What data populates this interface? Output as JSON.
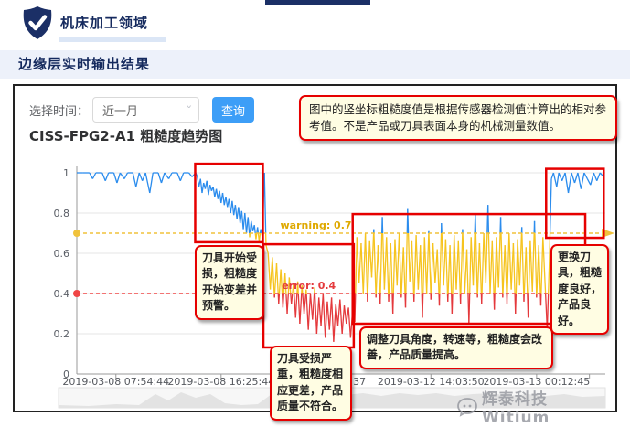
{
  "header": {
    "title": "机床加工领域"
  },
  "subheader": {
    "title": "边缘层实时输出结果"
  },
  "controls": {
    "time_label": "选择时间：",
    "time_value": "近一月",
    "query_button": "查询"
  },
  "note": "图中的竖坐标粗糙度值是根据传感器检测值计算出的相对参考值。不是产品或刀具表面本身的机械测量数值。",
  "callouts": [
    {
      "id": "tool-damage-start",
      "text": "刀具开始受损，粗糙度开始变差并预警。"
    },
    {
      "id": "tool-damage-severe",
      "text": "刀具受损严重，粗糙度相应更差，产品质量不符合。"
    },
    {
      "id": "tool-adjusted",
      "text": "调整刀具角度，转速等，粗糙度会改善，产品质量提高。"
    },
    {
      "id": "tool-replaced",
      "text": "更换刀具，粗糙度良好，产品良好。"
    }
  ],
  "watermark": {
    "text": "辉泰科技 Witium",
    "icon": "chat-bubble-icon"
  },
  "chart_data": {
    "type": "line",
    "title": "CISS-FPG2-A1 粗糙度趋势图",
    "ylabel": "",
    "xlabel": "",
    "ylim": [
      0,
      1
    ],
    "yticks": [
      0,
      0.2,
      0.4,
      0.6,
      0.8,
      1
    ],
    "grid": true,
    "x_labels": [
      {
        "pos": 7.4,
        "text": "2019-03-08 07:54:44"
      },
      {
        "pos": 27.3,
        "text": "2019-03-08 16:25:44"
      },
      {
        "pos": 54.7,
        "text": ":37",
        "anchor": "end"
      },
      {
        "pos": 67,
        "text": "2019-03-12 14:03:50"
      },
      {
        "pos": 87,
        "text": "2019-03-13 00:12:45"
      }
    ],
    "xticks": [
      7.4,
      27.3,
      47,
      67,
      87,
      97
    ],
    "thresholds": [
      {
        "name": "warning",
        "value": 0.7,
        "label": "warning: 0.7",
        "color": "#f0c23c",
        "label_color": "#dfa900",
        "label_x": 52,
        "arrow": true,
        "dot": true
      },
      {
        "name": "error",
        "value": 0.4,
        "label": "error: 0.4",
        "color": "#ef4545",
        "label_color": "#e4393c",
        "label_x": 49,
        "arrow": false,
        "dot": true
      }
    ],
    "series_colors": {
      "above_warning": "#2b8ced",
      "between": "#f6c41f",
      "below_error": "#e4393c"
    },
    "highlight_box_color": "#e60000",
    "highlight_regions": [
      {
        "x1": 22.4,
        "x2": 35.2,
        "v1": 0.655,
        "v2": 1.045
      },
      {
        "x1": 35.3,
        "x2": 52.4,
        "v1": 0.132,
        "v2": 0.645
      },
      {
        "x1": 52.2,
        "x2": 96.2,
        "v1": 0.25,
        "v2": 0.795
      },
      {
        "x1": 88.8,
        "x2": 99.7,
        "v1": 0.677,
        "v2": 1.02
      }
    ],
    "points": [
      [
        0,
        1
      ],
      [
        1.2,
        1
      ],
      [
        2.4,
        1
      ],
      [
        3,
        0.97
      ],
      [
        3.6,
        1
      ],
      [
        4.8,
        1
      ],
      [
        5.4,
        0.96
      ],
      [
        6,
        1
      ],
      [
        7,
        1
      ],
      [
        7.6,
        0.95
      ],
      [
        8.2,
        1
      ],
      [
        9,
        0.97
      ],
      [
        9.6,
        1
      ],
      [
        10.6,
        1
      ],
      [
        11.2,
        0.93
      ],
      [
        11.8,
        1
      ],
      [
        12.4,
        0.96
      ],
      [
        13,
        1
      ],
      [
        13.8,
        0.9
      ],
      [
        14.4,
        1
      ],
      [
        15.4,
        1
      ],
      [
        16,
        0.95
      ],
      [
        16.6,
        1
      ],
      [
        17.4,
        0.97
      ],
      [
        18,
        1
      ],
      [
        19,
        1
      ],
      [
        19.6,
        0.96
      ],
      [
        20.2,
        1
      ],
      [
        21.2,
        1
      ],
      [
        21.8,
        0.98
      ],
      [
        22.5,
        1
      ],
      [
        22.8,
        0.98
      ],
      [
        23.1,
        0.93
      ],
      [
        23.4,
        0.97
      ],
      [
        23.7,
        0.9
      ],
      [
        24,
        0.95
      ],
      [
        24.3,
        0.92
      ],
      [
        24.6,
        0.96
      ],
      [
        24.9,
        0.89
      ],
      [
        25.2,
        0.94
      ],
      [
        25.5,
        0.91
      ],
      [
        25.8,
        0.93
      ],
      [
        26.1,
        0.88
      ],
      [
        26.4,
        0.92
      ],
      [
        26.7,
        0.87
      ],
      [
        27,
        0.91
      ],
      [
        27.3,
        0.85
      ],
      [
        27.6,
        0.9
      ],
      [
        27.9,
        0.84
      ],
      [
        28.2,
        0.88
      ],
      [
        28.5,
        0.83
      ],
      [
        28.8,
        0.87
      ],
      [
        29.1,
        0.8
      ],
      [
        29.4,
        0.86
      ],
      [
        29.7,
        0.79
      ],
      [
        30,
        0.84
      ],
      [
        30.3,
        0.77
      ],
      [
        30.6,
        0.83
      ],
      [
        30.9,
        0.75
      ],
      [
        31.2,
        0.81
      ],
      [
        31.5,
        0.72
      ],
      [
        31.8,
        0.8
      ],
      [
        32.1,
        0.7
      ],
      [
        32.4,
        0.78
      ],
      [
        32.7,
        0.68
      ],
      [
        33,
        0.76
      ],
      [
        33.3,
        0.71
      ],
      [
        33.6,
        0.74
      ],
      [
        33.9,
        0.67
      ],
      [
        34.2,
        0.73
      ],
      [
        34.5,
        0.66
      ],
      [
        34.8,
        0.72
      ],
      [
        35.1,
        0.68
      ],
      [
        35.5,
        1
      ],
      [
        35.8,
        0.64
      ],
      [
        36.2,
        0.6
      ],
      [
        36.6,
        0.42
      ],
      [
        37,
        0.58
      ],
      [
        37.4,
        0.38
      ],
      [
        37.8,
        0.55
      ],
      [
        38.2,
        0.35
      ],
      [
        38.6,
        0.52
      ],
      [
        39,
        0.33
      ],
      [
        39.4,
        0.5
      ],
      [
        39.8,
        0.3
      ],
      [
        40.2,
        0.48
      ],
      [
        40.6,
        0.35
      ],
      [
        41,
        0.45
      ],
      [
        41.4,
        0.28
      ],
      [
        41.8,
        0.46
      ],
      [
        42.2,
        0.25
      ],
      [
        42.6,
        0.44
      ],
      [
        43,
        0.3
      ],
      [
        43.4,
        0.42
      ],
      [
        43.8,
        0.22
      ],
      [
        44.2,
        0.4
      ],
      [
        44.6,
        0.27
      ],
      [
        45,
        0.43
      ],
      [
        45.4,
        0.2
      ],
      [
        45.8,
        0.38
      ],
      [
        46.2,
        0.24
      ],
      [
        46.6,
        0.4
      ],
      [
        47,
        0.18
      ],
      [
        47.4,
        0.36
      ],
      [
        47.8,
        0.22
      ],
      [
        48.2,
        0.38
      ],
      [
        48.6,
        0.16
      ],
      [
        49,
        0.35
      ],
      [
        49.4,
        0.24
      ],
      [
        49.8,
        0.37
      ],
      [
        50.2,
        0.2
      ],
      [
        50.6,
        0.34
      ],
      [
        51,
        0.25
      ],
      [
        51.4,
        0.33
      ],
      [
        51.8,
        0.18
      ],
      [
        52.2,
        0.32
      ],
      [
        52.6,
        0.26
      ],
      [
        53,
        0.68
      ],
      [
        53.4,
        0.45
      ],
      [
        53.8,
        0.65
      ],
      [
        54.2,
        0.4
      ],
      [
        54.6,
        0.7
      ],
      [
        55,
        0.36
      ],
      [
        55.4,
        0.66
      ],
      [
        55.8,
        0.48
      ],
      [
        56.2,
        0.72
      ],
      [
        56.6,
        0.38
      ],
      [
        57,
        0.64
      ],
      [
        57.4,
        0.35
      ],
      [
        57.8,
        0.78
      ],
      [
        58.2,
        0.42
      ],
      [
        58.6,
        0.68
      ],
      [
        59,
        0.36
      ],
      [
        59.4,
        0.65
      ],
      [
        59.8,
        0.3
      ],
      [
        60.2,
        0.67
      ],
      [
        60.6,
        0.44
      ],
      [
        61,
        0.7
      ],
      [
        61.4,
        0.38
      ],
      [
        61.8,
        0.63
      ],
      [
        62.2,
        0.33
      ],
      [
        62.6,
        0.82
      ],
      [
        63,
        0.46
      ],
      [
        63.4,
        0.66
      ],
      [
        63.8,
        0.36
      ],
      [
        64.2,
        0.69
      ],
      [
        64.6,
        0.42
      ],
      [
        65,
        0.64
      ],
      [
        65.4,
        0.28
      ],
      [
        65.8,
        0.68
      ],
      [
        66.2,
        0.4
      ],
      [
        66.6,
        0.71
      ],
      [
        67,
        0.37
      ],
      [
        67.4,
        0.65
      ],
      [
        67.8,
        0.45
      ],
      [
        68.2,
        0.62
      ],
      [
        68.6,
        0.34
      ],
      [
        69,
        0.75
      ],
      [
        69.4,
        0.44
      ],
      [
        69.8,
        0.67
      ],
      [
        70.2,
        0.36
      ],
      [
        70.6,
        0.64
      ],
      [
        71,
        0.3
      ],
      [
        71.4,
        0.69
      ],
      [
        71.8,
        0.42
      ],
      [
        72.2,
        0.66
      ],
      [
        72.6,
        0.35
      ],
      [
        73,
        0.72
      ],
      [
        73.4,
        0.4
      ],
      [
        73.8,
        0.62
      ],
      [
        74.2,
        0.25
      ],
      [
        74.6,
        0.68
      ],
      [
        75,
        0.44
      ],
      [
        75.4,
        0.8
      ],
      [
        75.8,
        0.38
      ],
      [
        76.2,
        0.65
      ],
      [
        76.6,
        0.35
      ],
      [
        77,
        0.7
      ],
      [
        77.4,
        0.45
      ],
      [
        77.8,
        0.84
      ],
      [
        78.2,
        0.4
      ],
      [
        78.6,
        0.66
      ],
      [
        79,
        0.32
      ],
      [
        79.4,
        0.68
      ],
      [
        79.8,
        0.43
      ],
      [
        80.2,
        0.78
      ],
      [
        80.6,
        0.38
      ],
      [
        81,
        0.64
      ],
      [
        81.4,
        0.35
      ],
      [
        81.8,
        0.7
      ],
      [
        82.2,
        0.42
      ],
      [
        82.6,
        0.65
      ],
      [
        83,
        0.3
      ],
      [
        83.4,
        0.67
      ],
      [
        83.8,
        0.44
      ],
      [
        84.2,
        0.73
      ],
      [
        84.6,
        0.36
      ],
      [
        85,
        0.63
      ],
      [
        85.4,
        0.28
      ],
      [
        85.8,
        0.66
      ],
      [
        86.2,
        0.41
      ],
      [
        86.6,
        0.76
      ],
      [
        87,
        0.38
      ],
      [
        87.4,
        0.64
      ],
      [
        87.8,
        0.34
      ],
      [
        88.2,
        0.68
      ],
      [
        88.6,
        0.45
      ],
      [
        89,
        0.22
      ],
      [
        89.4,
        0.55
      ],
      [
        89.8,
        0.97
      ],
      [
        90.2,
        1
      ],
      [
        90.8,
        0.93
      ],
      [
        91.2,
        1
      ],
      [
        91.8,
        0.96
      ],
      [
        92.4,
        1
      ],
      [
        93,
        0.9
      ],
      [
        93.6,
        1
      ],
      [
        94.2,
        0.95
      ],
      [
        94.8,
        1
      ],
      [
        95.4,
        0.92
      ],
      [
        96,
        1
      ],
      [
        96.6,
        0.97
      ],
      [
        97.2,
        0.94
      ],
      [
        97.8,
        1
      ],
      [
        98.4,
        0.96
      ],
      [
        99,
        1
      ],
      [
        99.7,
        0.98
      ]
    ]
  }
}
